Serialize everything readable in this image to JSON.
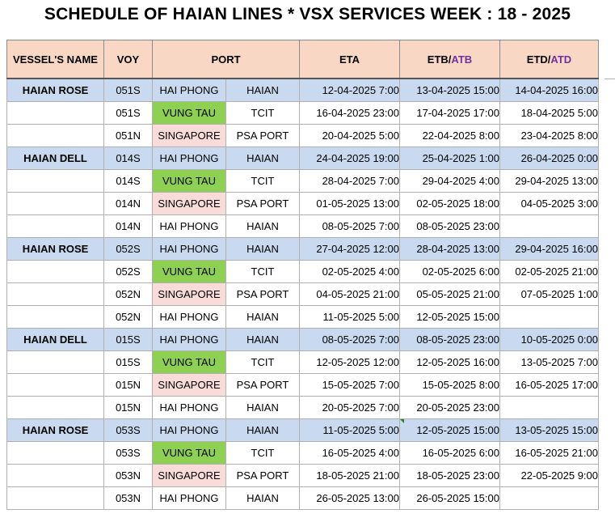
{
  "title": "SCHEDULE OF HAIAN LINES * VSX SERVICES WEEK : 18 - 2025",
  "headers": {
    "vessel": "VESSEL'S NAME",
    "voy": "VOY",
    "port": "PORT",
    "eta": "ETA",
    "etb_prefix": "ETB/",
    "etb_suffix": "ATB",
    "etd_prefix": "ETD/",
    "etd_suffix": "ATD"
  },
  "colors": {
    "header_bg": "#f8d8c4",
    "first_row_bg": "#c9daf0",
    "vung_tau_bg": "#8dd052",
    "singapore_bg": "#f9dcd9",
    "actual_text": "#7030a0"
  },
  "rows": [
    {
      "vessel": "HAIAN ROSE",
      "voy": "051S",
      "port": "HAI PHONG",
      "terminal": "HAIAN",
      "eta": "12-04-2025  7:00",
      "etb": "13-04-2025  15:00",
      "etd": "14-04-2025  16:00"
    },
    {
      "vessel": "",
      "voy": "051S",
      "port": "VUNG TAU",
      "terminal": "TCIT",
      "eta": "16-04-2025  23:00",
      "etb": "17-04-2025  17:00",
      "etd": "18-04-2025  5:00"
    },
    {
      "vessel": "",
      "voy": "051N",
      "port": "SINGAPORE",
      "terminal": "PSA PORT",
      "eta": "20-04-2025  5:00",
      "etb": "22-04-2025  8:00",
      "etd": "23-04-2025  8:00"
    },
    {
      "vessel": "HAIAN DELL",
      "voy": "014S",
      "port": "HAI PHONG",
      "terminal": "HAIAN",
      "eta": "24-04-2025  19:00",
      "etb": "25-04-2025  1:00",
      "etd": "26-04-2025  0:00"
    },
    {
      "vessel": "",
      "voy": "014S",
      "port": "VUNG TAU",
      "terminal": "TCIT",
      "eta": "28-04-2025  7:00",
      "etb": "29-04-2025  4:00",
      "etd": "29-04-2025  13:00"
    },
    {
      "vessel": "",
      "voy": "014N",
      "port": "SINGAPORE",
      "terminal": "PSA PORT",
      "eta": "01-05-2025  13:00",
      "etb": "02-05-2025  18:00",
      "etd": "04-05-2025  3:00"
    },
    {
      "vessel": "",
      "voy": "014N",
      "port": "HAI PHONG",
      "terminal": "HAIAN",
      "eta": "08-05-2025  7:00",
      "etb": "08-05-2025  23:00",
      "etd": ""
    },
    {
      "vessel": "HAIAN ROSE",
      "voy": "052S",
      "port": "HAI PHONG",
      "terminal": "HAIAN",
      "eta": "27-04-2025  12:00",
      "etb": "28-04-2025  13:00",
      "etd": "29-04-2025  16:00"
    },
    {
      "vessel": "",
      "voy": "052S",
      "port": "VUNG TAU",
      "terminal": "TCIT",
      "eta": "02-05-2025  4:00",
      "etb": "02-05-2025  6:00",
      "etd": "02-05-2025  21:00"
    },
    {
      "vessel": "",
      "voy": "052N",
      "port": "SINGAPORE",
      "terminal": "PSA PORT",
      "eta": "04-05-2025  21:00",
      "etb": "05-05-2025  21:00",
      "etd": "07-05-2025  1:00"
    },
    {
      "vessel": "",
      "voy": "052N",
      "port": "HAI PHONG",
      "terminal": "HAIAN",
      "eta": "11-05-2025  5:00",
      "etb": "12-05-2025  15:00",
      "etd": ""
    },
    {
      "vessel": "HAIAN DELL",
      "voy": "015S",
      "port": "HAI PHONG",
      "terminal": "HAIAN",
      "eta": "08-05-2025  7:00",
      "etb": "08-05-2025  23:00",
      "etd": "10-05-2025  0:00"
    },
    {
      "vessel": "",
      "voy": "015S",
      "port": "VUNG TAU",
      "terminal": "TCIT",
      "eta": "12-05-2025  12:00",
      "etb": "12-05-2025  16:00",
      "etd": "13-05-2025  7:00"
    },
    {
      "vessel": "",
      "voy": "015N",
      "port": "SINGAPORE",
      "terminal": "PSA PORT",
      "eta": "15-05-2025  7:00",
      "etb": "15-05-2025  8:00",
      "etd": "16-05-2025  17:00"
    },
    {
      "vessel": "",
      "voy": "015N",
      "port": "HAI PHONG",
      "terminal": "HAIAN",
      "eta": "20-05-2025  7:00",
      "etb": "20-05-2025  23:00",
      "etd": ""
    },
    {
      "vessel": "HAIAN ROSE",
      "voy": "053S",
      "port": "HAI PHONG",
      "terminal": "HAIAN",
      "eta": "11-05-2025  5:00",
      "etb": "12-05-2025  15:00",
      "etd": "13-05-2025  15:00"
    },
    {
      "vessel": "",
      "voy": "053S",
      "port": "VUNG TAU",
      "terminal": "TCIT",
      "eta": "16-05-2025  4:00",
      "etb": "16-05-2025  6:00",
      "etd": "16-05-2025  21:00"
    },
    {
      "vessel": "",
      "voy": "053N",
      "port": "SINGAPORE",
      "terminal": "PSA PORT",
      "eta": "18-05-2025  21:00",
      "etb": "18-05-2025  23:00",
      "etd": "22-05-2025  9:00"
    },
    {
      "vessel": "",
      "voy": "053N",
      "port": "HAI PHONG",
      "terminal": "HAIAN",
      "eta": "26-05-2025  13:00",
      "etb": "26-05-2025  15:00",
      "etd": ""
    }
  ]
}
